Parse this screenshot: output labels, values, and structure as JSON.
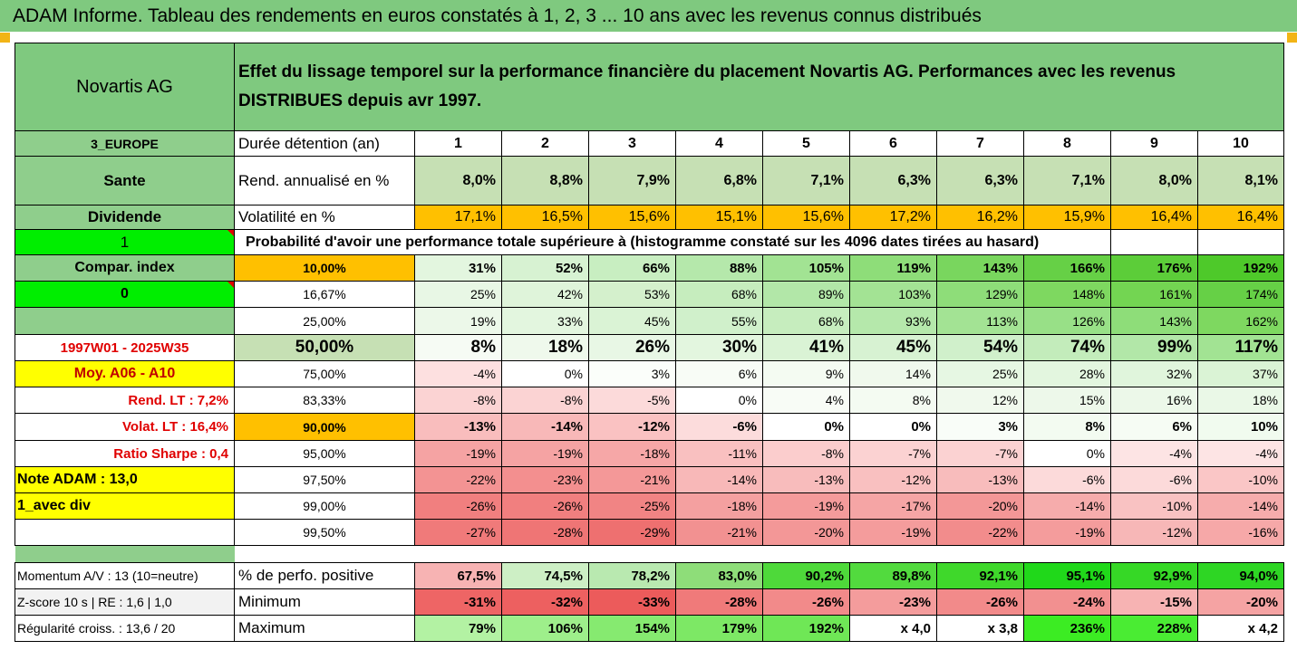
{
  "title": "ADAM Informe. Tableau des rendements en euros constatés à 1, 2, 3 ... 10 ans avec les revenus connus distribués",
  "header": {
    "name": "Novartis AG",
    "description": "Effet du lissage temporel sur la performance financière du placement Novartis AG. Performances avec les revenus DISTRIBUES depuis avr 1997."
  },
  "rows": {
    "duration": {
      "side": "3_EUROPE",
      "label": "Durée détention (an)",
      "years": [
        "1",
        "2",
        "3",
        "4",
        "5",
        "6",
        "7",
        "8",
        "9",
        "10"
      ]
    },
    "rend": {
      "side": "Sante",
      "label": "Rend. annualisé en %",
      "values": [
        "8,0%",
        "8,8%",
        "7,9%",
        "6,8%",
        "7,1%",
        "6,3%",
        "6,3%",
        "7,1%",
        "8,0%",
        "8,1%"
      ]
    },
    "vol": {
      "side": "Dividende",
      "label": "Volatilité en %",
      "values": [
        "17,1%",
        "16,5%",
        "15,6%",
        "15,1%",
        "15,6%",
        "17,2%",
        "16,2%",
        "15,9%",
        "16,4%",
        "16,4%"
      ]
    },
    "prob": {
      "side": "1",
      "label": "Probabilité d'avoir une performance totale supérieure à (histogramme constaté sur les 4096 dates tirées au hasard)"
    }
  },
  "probability_rows": [
    {
      "side": "Compar. index",
      "pct": "10,00%",
      "values": [
        "31%",
        "52%",
        "66%",
        "88%",
        "105%",
        "119%",
        "143%",
        "166%",
        "176%",
        "192%"
      ]
    },
    {
      "side": "0",
      "pct": "16,67%",
      "values": [
        "25%",
        "42%",
        "53%",
        "68%",
        "89%",
        "103%",
        "129%",
        "148%",
        "161%",
        "174%"
      ]
    },
    {
      "side": "",
      "pct": "25,00%",
      "values": [
        "19%",
        "33%",
        "45%",
        "55%",
        "68%",
        "93%",
        "113%",
        "126%",
        "143%",
        "162%"
      ]
    },
    {
      "side": "1997W01 - 2025W35",
      "pct": "50,00%",
      "values": [
        "8%",
        "18%",
        "26%",
        "30%",
        "41%",
        "45%",
        "54%",
        "74%",
        "99%",
        "117%"
      ]
    },
    {
      "side": "Moy. A06 - A10",
      "pct": "75,00%",
      "values": [
        "-4%",
        "0%",
        "3%",
        "6%",
        "9%",
        "14%",
        "25%",
        "28%",
        "32%",
        "37%"
      ]
    },
    {
      "side": "Rend. LT :   7,2%",
      "pct": "83,33%",
      "values": [
        "-8%",
        "-8%",
        "-5%",
        "0%",
        "4%",
        "8%",
        "12%",
        "15%",
        "16%",
        "18%"
      ]
    },
    {
      "side": "Volat. LT :   16,4%",
      "pct": "90,00%",
      "values": [
        "-13%",
        "-14%",
        "-12%",
        "-6%",
        "0%",
        "0%",
        "3%",
        "8%",
        "6%",
        "10%"
      ]
    },
    {
      "side": "Ratio Sharpe :   0,4",
      "pct": "95,00%",
      "values": [
        "-19%",
        "-19%",
        "-18%",
        "-11%",
        "-8%",
        "-7%",
        "-7%",
        "0%",
        "-4%",
        "-4%"
      ]
    },
    {
      "side": "Note ADAM : 13,0",
      "pct": "97,50%",
      "values": [
        "-22%",
        "-23%",
        "-21%",
        "-14%",
        "-13%",
        "-12%",
        "-13%",
        "-6%",
        "-6%",
        "-10%"
      ]
    },
    {
      "side": "1_avec div",
      "pct": "99,00%",
      "values": [
        "-26%",
        "-26%",
        "-25%",
        "-18%",
        "-19%",
        "-17%",
        "-20%",
        "-14%",
        "-10%",
        "-14%"
      ]
    },
    {
      "side": "",
      "pct": "99,50%",
      "values": [
        "-27%",
        "-28%",
        "-29%",
        "-21%",
        "-20%",
        "-19%",
        "-22%",
        "-19%",
        "-12%",
        "-16%"
      ]
    }
  ],
  "stats_rows": [
    {
      "side": "Momentum A/V : 13 (10=neutre)",
      "label": "% de perfo. positive",
      "values": [
        "67,5%",
        "74,5%",
        "78,2%",
        "83,0%",
        "90,2%",
        "89,8%",
        "92,1%",
        "95,1%",
        "92,9%",
        "94,0%"
      ]
    },
    {
      "side": "Z-score 10 s  | RE : 1,6 | 1,0",
      "label": "Minimum",
      "values": [
        "-31%",
        "-32%",
        "-33%",
        "-28%",
        "-26%",
        "-23%",
        "-26%",
        "-24%",
        "-15%",
        "-20%"
      ]
    },
    {
      "side": "Régularité croiss. : 13,6 / 20",
      "label": "Maximum",
      "values": [
        "79%",
        "106%",
        "154%",
        "179%",
        "192%",
        "x 4,0",
        "x 3,8",
        "236%",
        "228%",
        "x 4,2"
      ]
    }
  ],
  "colors": {
    "probability_cells": [
      [
        "#e3f6df",
        "#d7f2d2",
        "#c8eec1",
        "#b5e8ab",
        "#a2e393",
        "#8edd79",
        "#79d65e",
        "#66d046",
        "#5ccd39",
        "#4ec92a"
      ],
      [
        "#e8f7e5",
        "#dff4da",
        "#d4f0cc",
        "#c6edbe",
        "#b2e7a8",
        "#a3e394",
        "#8edd79",
        "#7ed860",
        "#73d552",
        "#66d046"
      ],
      [
        "#ecf8e9",
        "#e3f6df",
        "#daf3d5",
        "#d0f0cb",
        "#c6edbe",
        "#b5e8ab",
        "#a3e394",
        "#98e087",
        "#8edd79",
        "#7ed860"
      ],
      [
        "#f6fbf4",
        "#eff9ec",
        "#e8f7e5",
        "#e3f6df",
        "#daf3d5",
        "#d7f2d2",
        "#d0f0cb",
        "#c3ecbb",
        "#b2e7a8",
        "#a2e393"
      ],
      [
        "#fde0e0",
        "#ffffff",
        "#fbfefa",
        "#f8fcf6",
        "#f4fbf2",
        "#f0f9ed",
        "#e6f7e3",
        "#e3f6df",
        "#e0f5dc",
        "#daf3d5"
      ],
      [
        "#fbd3d3",
        "#fbd3d3",
        "#fcdada",
        "#ffffff",
        "#f8fcf6",
        "#f4fbf2",
        "#f0f9ed",
        "#edf8ea",
        "#ecf8e9",
        "#eaf8e7"
      ],
      [
        "#f9bdbd",
        "#f8b8b8",
        "#fac2c2",
        "#fcdcdc",
        "#ffffff",
        "#ffffff",
        "#f9fdf8",
        "#f3fbf1",
        "#f6fcf4",
        "#f1fbef"
      ],
      [
        "#f5a3a3",
        "#f5a3a3",
        "#f6a7a7",
        "#f9c0c0",
        "#fbcdcd",
        "#fbd2d2",
        "#fbd2d2",
        "#ffffff",
        "#fde4e4",
        "#fde4e4"
      ],
      [
        "#f39393",
        "#f38f8f",
        "#f49898",
        "#f8b8b8",
        "#f8bcbc",
        "#f9c0c0",
        "#f8bcbc",
        "#fcdada",
        "#fcdada",
        "#fac6c6"
      ],
      [
        "#f17f7f",
        "#f17f7f",
        "#f18484",
        "#f4a0a0",
        "#f49b9b",
        "#f5a5a5",
        "#f39797",
        "#f6acac",
        "#f9c2c2",
        "#f6acac"
      ],
      [
        "#f07a7a",
        "#ef7575",
        "#ee7070",
        "#f29191",
        "#f39797",
        "#f49c9c",
        "#f28c8c",
        "#f49c9c",
        "#f7b7b7",
        "#f6a8a8"
      ]
    ],
    "stats_cells": [
      [
        "#f7b3b3",
        "#cdefc5",
        "#b9e9b0",
        "#8edd79",
        "#4ed93a",
        "#52da3e",
        "#3fd82b",
        "#20d81a",
        "#36d826",
        "#2ed624"
      ],
      [
        "#ee6565",
        "#ed6060",
        "#ec5b5b",
        "#f07a7a",
        "#f28a8a",
        "#f49c9c",
        "#f28a8a",
        "#f29090",
        "#f7b3b3",
        "#f5a3a3"
      ],
      [
        "#b3f2a3",
        "#9eef8b",
        "#86ea70",
        "#7de865",
        "#6fe756",
        "#ffffff",
        "#ffffff",
        "#3cec23",
        "#4aec33",
        "#ffffff"
      ]
    ]
  }
}
